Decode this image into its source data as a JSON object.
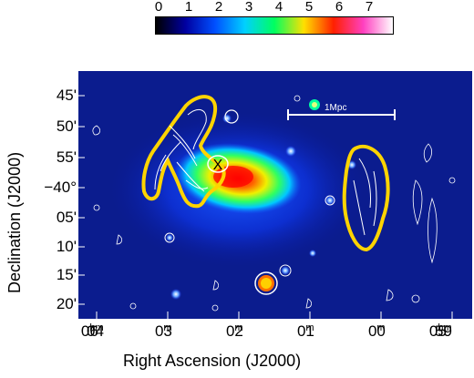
{
  "colorbar": {
    "ticks": [
      "0",
      "1",
      "2",
      "3",
      "4",
      "5",
      "6",
      "7"
    ],
    "colors": [
      "#000000",
      "#0000a0",
      "#0050ff",
      "#00d0ff",
      "#00ff60",
      "#ffe000",
      "#ff2000",
      "#ff40c0",
      "#ffffff"
    ]
  },
  "axes": {
    "xlabel": "Right Ascension (J2000)",
    "ylabel": "Declination (J2000)",
    "ra_ticks": [
      {
        "h": "06",
        "m": "04"
      },
      {
        "h": "",
        "m": "03"
      },
      {
        "h": "",
        "m": "02"
      },
      {
        "h": "",
        "m": "01"
      },
      {
        "h": "",
        "m": "00"
      },
      {
        "h": "05",
        "m": "59"
      }
    ],
    "dec_ticks": [
      "45'",
      "50'",
      "55'",
      "−40°",
      "05'",
      "10'",
      "15'",
      "20'"
    ]
  },
  "annotations": {
    "scale_bar": "1Mpc",
    "marker": "X"
  }
}
